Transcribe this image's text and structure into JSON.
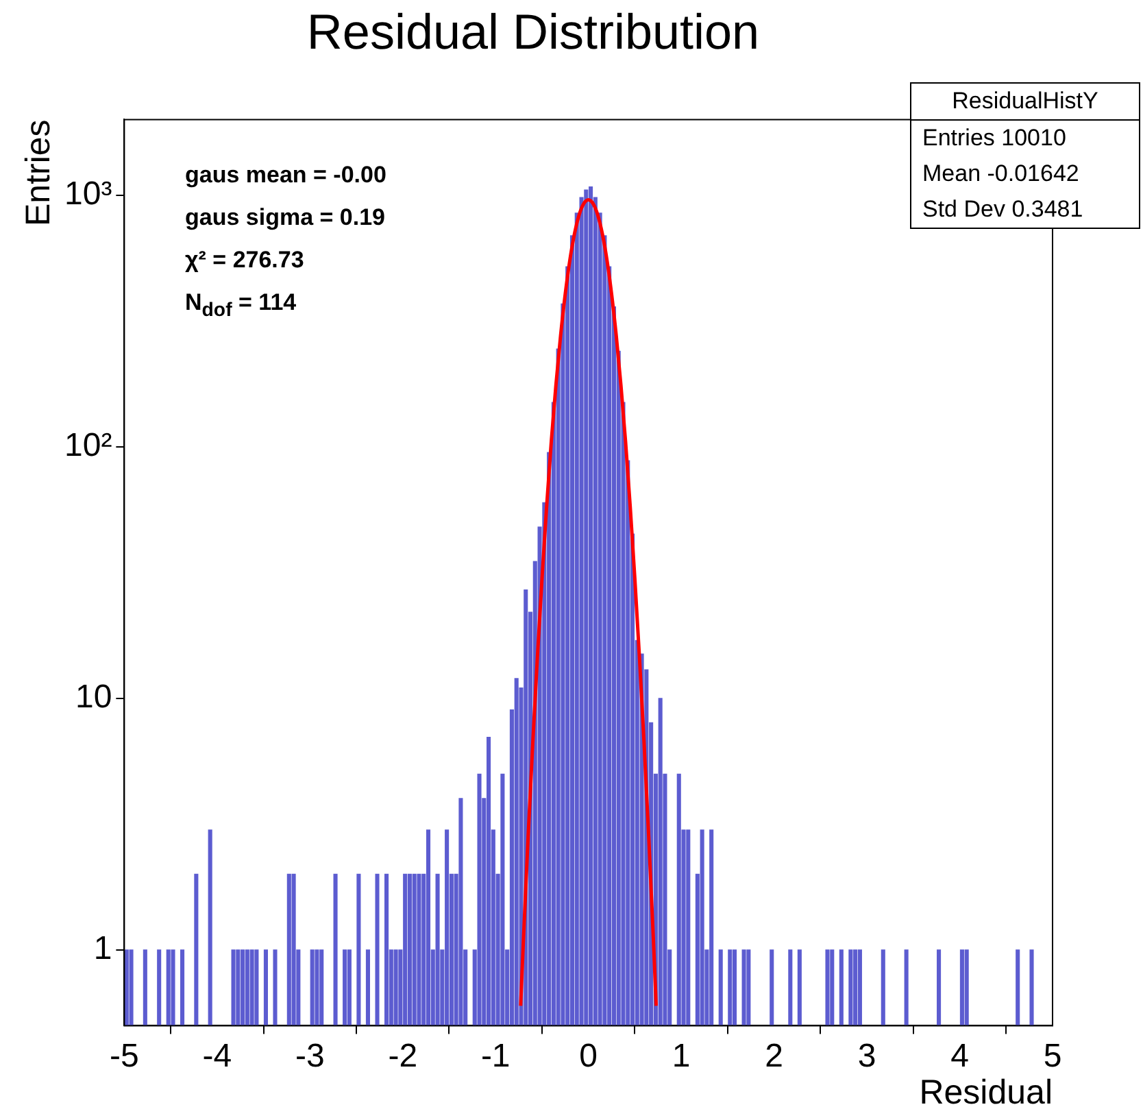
{
  "chart_data": {
    "type": "histogram",
    "title": "Residual Distribution",
    "xlabel": "Residual",
    "ylabel": "Entries",
    "bins": [
      -5,
      -4.95,
      -4.9,
      -4.85,
      -4.8,
      -4.75,
      -4.7,
      -4.65,
      -4.6,
      -4.55,
      -4.5,
      -4.45,
      -4.4,
      -4.35,
      -4.3,
      -4.25,
      -4.2,
      -4.15,
      -4.1,
      -4.05,
      -4,
      -3.95,
      -3.9,
      -3.85,
      -3.8,
      -3.75,
      -3.7,
      -3.65,
      -3.6,
      -3.55,
      -3.5,
      -3.45,
      -3.4,
      -3.35,
      -3.3,
      -3.25,
      -3.2,
      -3.15,
      -3.1,
      -3.05,
      -3,
      -2.95,
      -2.9,
      -2.85,
      -2.8,
      -2.75,
      -2.7,
      -2.65,
      -2.6,
      -2.55,
      -2.5,
      -2.45,
      -2.4,
      -2.35,
      -2.3,
      -2.25,
      -2.2,
      -2.15,
      -2.1,
      -2.05,
      -2,
      -1.95,
      -1.9,
      -1.85,
      -1.8,
      -1.75,
      -1.7,
      -1.65,
      -1.6,
      -1.55,
      -1.5,
      -1.45,
      -1.4,
      -1.35,
      -1.3,
      -1.25,
      -1.2,
      -1.15,
      -1.1,
      -1.05,
      -1,
      -0.95,
      -0.9,
      -0.85,
      -0.8,
      -0.75,
      -0.7,
      -0.65,
      -0.6,
      -0.55,
      -0.5,
      -0.45,
      -0.4,
      -0.35,
      -0.3,
      -0.25,
      -0.2,
      -0.15,
      -0.1,
      -0.05,
      0,
      0.05,
      0.1,
      0.15,
      0.2,
      0.25,
      0.3,
      0.35,
      0.4,
      0.45,
      0.5,
      0.55,
      0.6,
      0.65,
      0.7,
      0.75,
      0.8,
      0.85,
      0.9,
      0.95,
      1,
      1.05,
      1.1,
      1.15,
      1.2,
      1.25,
      1.3,
      1.35,
      1.4,
      1.45,
      1.5,
      1.55,
      1.6,
      1.65,
      1.7,
      1.75,
      1.8,
      1.85,
      1.9,
      1.95,
      2,
      2.05,
      2.1,
      2.15,
      2.2,
      2.25,
      2.3,
      2.35,
      2.4,
      2.45,
      2.5,
      2.55,
      2.6,
      2.65,
      2.7,
      2.75,
      2.8,
      2.85,
      2.9,
      2.95,
      3,
      3.05,
      3.1,
      3.15,
      3.2,
      3.25,
      3.3,
      3.35,
      3.4,
      3.45,
      3.5,
      3.55,
      3.6,
      3.65,
      3.7,
      3.75,
      3.8,
      3.85,
      3.9,
      3.95,
      4,
      4.05,
      4.1,
      4.15,
      4.2,
      4.25,
      4.3,
      4.35,
      4.4,
      4.45,
      4.5,
      4.55,
      4.6,
      4.65,
      4.7,
      4.75,
      4.8,
      4.85,
      4.9,
      4.95,
      5
    ],
    "values": [
      1,
      1,
      null,
      null,
      1,
      null,
      null,
      1,
      null,
      1,
      1,
      null,
      1,
      null,
      null,
      2,
      null,
      null,
      3,
      null,
      null,
      null,
      null,
      1,
      1,
      1,
      1,
      1,
      1,
      null,
      1,
      null,
      1,
      null,
      null,
      2,
      2,
      1,
      null,
      null,
      1,
      1,
      1,
      null,
      null,
      2,
      null,
      1,
      1,
      null,
      2,
      null,
      1,
      null,
      2,
      null,
      2,
      1,
      1,
      1,
      2,
      2,
      2,
      2,
      2,
      3,
      1,
      2,
      1,
      3,
      2,
      2,
      4,
      1,
      null,
      1,
      5,
      4,
      7,
      3,
      2,
      5,
      1,
      9,
      12,
      11,
      27,
      22,
      35,
      48,
      60,
      95,
      150,
      245,
      370,
      520,
      690,
      850,
      980,
      1050,
      1080,
      980,
      850,
      690,
      520,
      360,
      240,
      150,
      88,
      45,
      17,
      15,
      13,
      8,
      5,
      10,
      5,
      1,
      null,
      5,
      3,
      3,
      null,
      2,
      3,
      1,
      3,
      null,
      1,
      null,
      1,
      1,
      null,
      1,
      1,
      null,
      null,
      null,
      null,
      1,
      null,
      null,
      null,
      1,
      null,
      1,
      null,
      null,
      null,
      null,
      null,
      1,
      1,
      null,
      1,
      null,
      1,
      1,
      1,
      null,
      null,
      null,
      null,
      1,
      null,
      null,
      null,
      null,
      1,
      null,
      null,
      null,
      null,
      null,
      null,
      1,
      null,
      null,
      null,
      null,
      1,
      1,
      null,
      null,
      null,
      null,
      null,
      null,
      null,
      null,
      null,
      null,
      1,
      null,
      null,
      1,
      null,
      null,
      null,
      null
    ],
    "color": "#5c5cd0",
    "series": [
      {
        "type": "line",
        "color": "#ff0000",
        "x": [
          -0.73,
          -0.7,
          -0.65,
          -0.6,
          -0.55,
          -0.5,
          -0.45,
          -0.4,
          -0.35,
          -0.3,
          -0.25,
          -0.2,
          -0.15,
          -0.1,
          -0.05,
          0,
          0.05,
          0.1,
          0.15,
          0.2,
          0.25,
          0.3,
          0.35,
          0.4,
          0.45,
          0.5,
          0.55,
          0.6,
          0.65,
          0.7,
          0.73
        ],
        "values": [
          0.6,
          1.1,
          2.8,
          6.6,
          14.5,
          30,
          58,
          105,
          176,
          276,
          404,
          552,
          703,
          836,
          927,
          960,
          927,
          836,
          703,
          552,
          404,
          276,
          176,
          105,
          58,
          30,
          14.5,
          6.6,
          2.8,
          1.1,
          0.6
        ]
      }
    ],
    "log": true,
    "xlim": [
      -5,
      5
    ],
    "xticks": [
      -5,
      -4,
      -3,
      -2,
      -1,
      0,
      1,
      2,
      3,
      4,
      5
    ],
    "ylim": [
      0.5,
      2000
    ],
    "yticks": [
      1,
      10,
      {
        "value": 100,
        "label": "10²"
      },
      {
        "value": 1000,
        "label": "10³"
      }
    ],
    "grid": false,
    "legend": false,
    "line_style": "solid",
    "marker": "none",
    "annotations": [
      "gaus mean = -0.00",
      "gaus sigma = 0.19",
      "χ² = 276.73",
      "N$_{dof}$ = 114",
      "ResidualHistY",
      "Entries 10010",
      "Mean -0.01642",
      "Std Dev 0.3481"
    ]
  }
}
